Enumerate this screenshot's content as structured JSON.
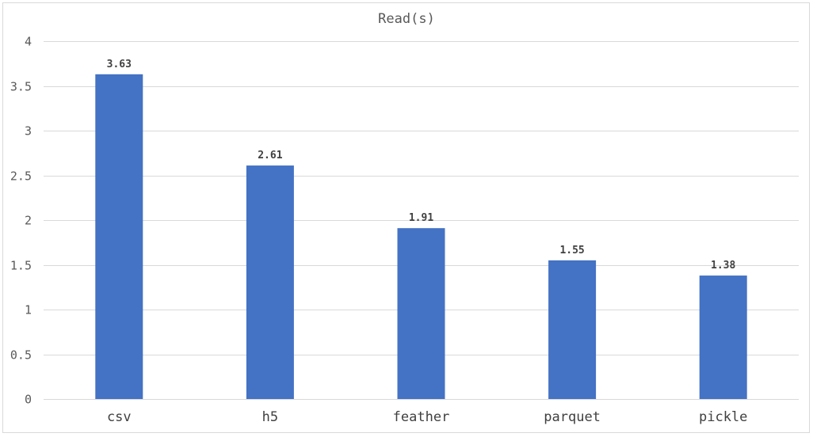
{
  "chart_data": {
    "type": "bar",
    "title": "Read(s)",
    "categories": [
      "csv",
      "h5",
      "feather",
      "parquet",
      "pickle"
    ],
    "values": [
      3.63,
      2.61,
      1.91,
      1.55,
      1.38
    ],
    "data_labels": [
      "3.63",
      "2.61",
      "1.91",
      "1.55",
      "1.38"
    ],
    "ylim": [
      0,
      4
    ],
    "yticks": [
      0,
      0.5,
      1,
      1.5,
      2,
      2.5,
      3,
      3.5,
      4
    ],
    "ytick_labels": [
      "0",
      "0.5",
      "1",
      "1.5",
      "2",
      "2.5",
      "3",
      "3.5",
      "4"
    ],
    "xlabel": "",
    "ylabel": "",
    "grid": true,
    "legend": "none",
    "bar_color": "#4472c4"
  }
}
